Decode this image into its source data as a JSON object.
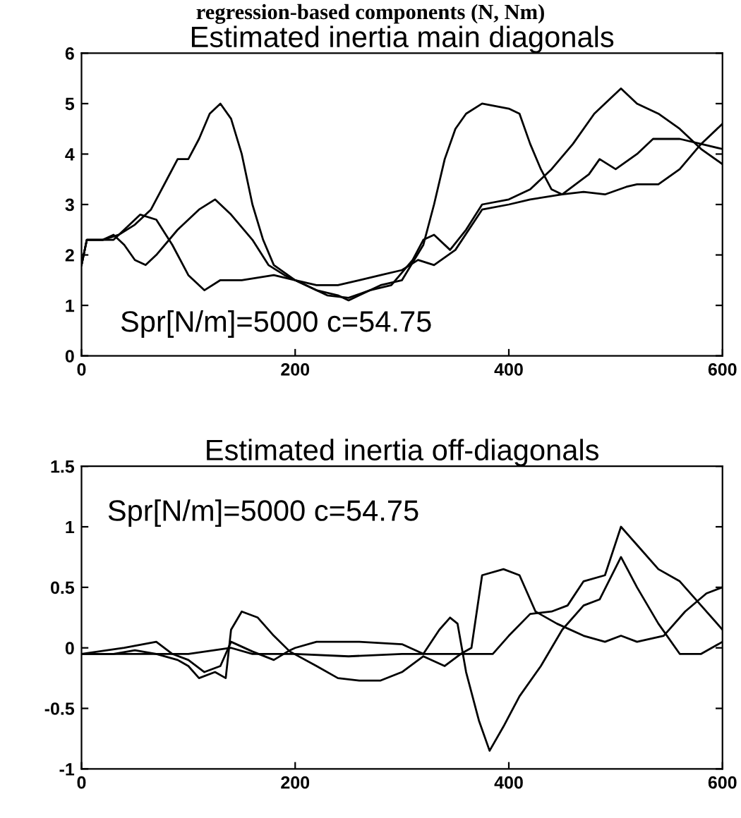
{
  "chart_data": [
    {
      "type": "line",
      "subtitle": "regression-based components (N, Nm)",
      "title": "Estimated inertia main diagonals",
      "xlim": [
        0,
        600
      ],
      "xticks": [
        0,
        200,
        400,
        600
      ],
      "ylim": [
        0,
        6
      ],
      "yticks": [
        0,
        1,
        2,
        3,
        4,
        5,
        6
      ],
      "marker": "none",
      "line_style": "solid",
      "annotations": [
        "Spr[N/m]=5000 c=54.75"
      ],
      "series": [
        {
          "color": "#000000",
          "x": [
            0,
            5,
            20,
            35,
            50,
            65,
            80,
            90,
            100,
            110,
            120,
            130,
            140,
            150,
            160,
            170,
            180,
            200,
            220,
            240,
            250,
            260,
            280,
            300,
            320,
            330,
            340,
            350,
            360,
            375,
            400,
            410,
            420,
            430,
            440,
            450,
            470,
            490,
            510,
            520,
            540,
            560,
            580,
            600
          ],
          "values": [
            1.8,
            2.3,
            2.3,
            2.4,
            2.6,
            2.9,
            3.5,
            3.9,
            3.9,
            4.3,
            4.8,
            5.0,
            4.7,
            4.0,
            3.0,
            2.3,
            1.8,
            1.5,
            1.3,
            1.2,
            1.1,
            1.2,
            1.4,
            1.5,
            2.2,
            3.0,
            3.9,
            4.5,
            4.8,
            5.0,
            4.9,
            4.8,
            4.2,
            3.7,
            3.3,
            3.2,
            3.25,
            3.2,
            3.35,
            3.4,
            3.4,
            3.7,
            4.2,
            4.6
          ]
        },
        {
          "color": "#000000",
          "x": [
            0,
            5,
            20,
            30,
            40,
            50,
            60,
            70,
            90,
            110,
            125,
            140,
            160,
            175,
            190,
            210,
            230,
            250,
            270,
            290,
            310,
            320,
            330,
            345,
            360,
            375,
            400,
            420,
            440,
            460,
            480,
            495,
            505,
            520,
            540,
            560,
            580,
            600
          ],
          "values": [
            1.8,
            2.3,
            2.3,
            2.4,
            2.2,
            1.9,
            1.8,
            2.0,
            2.5,
            2.9,
            3.1,
            2.8,
            2.3,
            1.8,
            1.6,
            1.4,
            1.2,
            1.15,
            1.3,
            1.4,
            1.9,
            2.3,
            2.4,
            2.1,
            2.5,
            3.0,
            3.1,
            3.3,
            3.7,
            4.2,
            4.8,
            5.1,
            5.3,
            5.0,
            4.8,
            4.5,
            4.1,
            3.8
          ]
        },
        {
          "color": "#000000",
          "x": [
            0,
            5,
            20,
            30,
            40,
            55,
            70,
            85,
            100,
            115,
            130,
            150,
            180,
            200,
            220,
            240,
            260,
            280,
            300,
            315,
            330,
            350,
            375,
            400,
            420,
            450,
            475,
            485,
            500,
            520,
            535,
            560,
            580,
            600
          ],
          "values": [
            1.8,
            2.3,
            2.3,
            2.3,
            2.5,
            2.8,
            2.7,
            2.2,
            1.6,
            1.3,
            1.5,
            1.5,
            1.6,
            1.5,
            1.4,
            1.4,
            1.5,
            1.6,
            1.7,
            1.9,
            1.8,
            2.1,
            2.9,
            3.0,
            3.1,
            3.2,
            3.6,
            3.9,
            3.7,
            4.0,
            4.3,
            4.3,
            4.2,
            4.1
          ]
        }
      ]
    },
    {
      "type": "line",
      "title": "Estimated inertia off-diagonals",
      "xlim": [
        0,
        600
      ],
      "xticks": [
        0,
        200,
        400,
        600
      ],
      "ylim": [
        -1,
        1.5
      ],
      "yticks": [
        -1,
        -0.5,
        0,
        0.5,
        1,
        1.5
      ],
      "marker": "none",
      "line_style": "solid",
      "annotations": [
        "Spr[N/m]=5000 c=54.75"
      ],
      "series": [
        {
          "color": "#000000",
          "x": [
            0,
            40,
            70,
            85,
            100,
            115,
            130,
            140,
            160,
            180,
            195,
            200,
            220,
            260,
            300,
            320,
            335,
            345,
            352,
            360,
            372,
            382,
            395,
            410,
            430,
            450,
            470,
            485,
            505,
            520,
            540,
            560,
            580,
            600
          ],
          "values": [
            -0.05,
            0.0,
            0.05,
            -0.05,
            -0.1,
            -0.2,
            -0.15,
            0.05,
            -0.03,
            -0.1,
            -0.02,
            0.0,
            0.05,
            0.05,
            0.03,
            -0.05,
            0.15,
            0.25,
            0.2,
            -0.2,
            -0.6,
            -0.85,
            -0.65,
            -0.4,
            -0.15,
            0.15,
            0.35,
            0.4,
            0.75,
            0.5,
            0.2,
            -0.05,
            -0.05,
            0.05
          ]
        },
        {
          "color": "#000000",
          "x": [
            0,
            30,
            50,
            70,
            90,
            100,
            110,
            125,
            135,
            140,
            150,
            165,
            180,
            195,
            220,
            240,
            260,
            280,
            300,
            320,
            340,
            355,
            365,
            375,
            395,
            410,
            425,
            445,
            470,
            490,
            505,
            520,
            545,
            565,
            585,
            600
          ],
          "values": [
            -0.05,
            -0.05,
            -0.02,
            -0.05,
            -0.1,
            -0.15,
            -0.25,
            -0.2,
            -0.25,
            0.15,
            0.3,
            0.25,
            0.1,
            -0.03,
            -0.15,
            -0.25,
            -0.27,
            -0.27,
            -0.2,
            -0.07,
            -0.15,
            -0.05,
            0.0,
            0.6,
            0.65,
            0.6,
            0.3,
            0.2,
            0.1,
            0.05,
            0.1,
            0.05,
            0.1,
            0.3,
            0.45,
            0.5
          ]
        },
        {
          "color": "#000000",
          "x": [
            0,
            50,
            100,
            140,
            160,
            200,
            250,
            300,
            350,
            385,
            400,
            420,
            440,
            455,
            470,
            490,
            505,
            520,
            540,
            560,
            580,
            600
          ],
          "values": [
            -0.05,
            -0.05,
            -0.05,
            0.0,
            -0.05,
            -0.05,
            -0.07,
            -0.05,
            -0.05,
            -0.05,
            0.1,
            0.28,
            0.3,
            0.35,
            0.55,
            0.6,
            1.0,
            0.85,
            0.65,
            0.55,
            0.35,
            0.15
          ]
        }
      ]
    }
  ]
}
